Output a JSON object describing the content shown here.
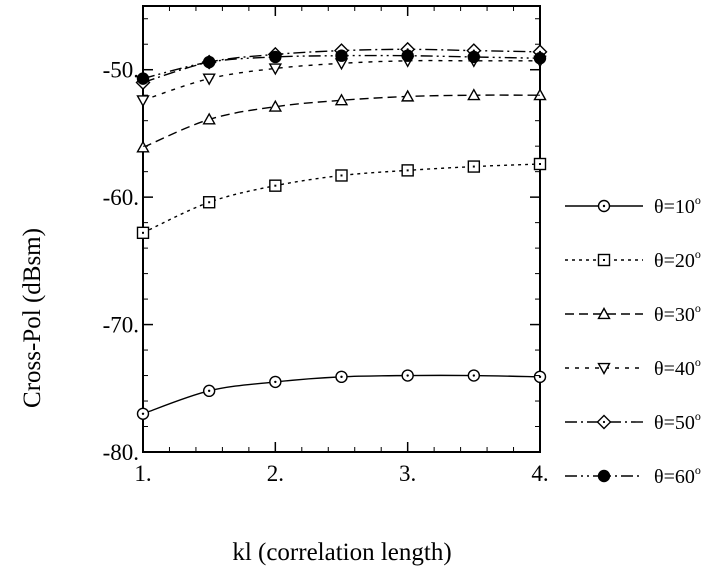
{
  "chart_data": {
    "type": "line",
    "xlabel": "kl (correlation length)",
    "ylabel": "Cross-Pol (dBsm)",
    "xlim": [
      1,
      4
    ],
    "ylim": [
      -80,
      -45
    ],
    "xticks": [
      1,
      2,
      3,
      4
    ],
    "xtick_labels": [
      "1.",
      "2.",
      "3.",
      "4."
    ],
    "yticks": [
      -50,
      -60,
      -70,
      -80
    ],
    "ytick_labels": [
      "-50.",
      "-60.",
      "-70.",
      "-80."
    ],
    "grid": false,
    "legend_position": "right",
    "x": [
      1.0,
      1.5,
      2.0,
      2.5,
      3.0,
      3.5,
      4.0
    ],
    "series": [
      {
        "name": "θ=10",
        "name_sup": "o",
        "marker": "circle-open",
        "line": "solid",
        "values": [
          -77.0,
          -75.2,
          -74.5,
          -74.1,
          -74.0,
          -74.0,
          -74.1
        ]
      },
      {
        "name": "θ=20",
        "name_sup": "o",
        "marker": "square-open",
        "line": "dotted",
        "values": [
          -62.8,
          -60.4,
          -59.1,
          -58.3,
          -57.9,
          -57.6,
          -57.4
        ]
      },
      {
        "name": "θ=30",
        "name_sup": "o",
        "marker": "triangle-up-open",
        "line": "dashed",
        "values": [
          -56.1,
          -53.9,
          -52.9,
          -52.4,
          -52.1,
          -52.0,
          -52.0
        ]
      },
      {
        "name": "θ=40",
        "name_sup": "o",
        "marker": "triangle-down-open",
        "line": "dotted-long",
        "values": [
          -52.4,
          -50.7,
          -49.9,
          -49.5,
          -49.3,
          -49.3,
          -49.3
        ]
      },
      {
        "name": "θ=50",
        "name_sup": "o",
        "marker": "diamond-open",
        "line": "dash-dot",
        "values": [
          -51.0,
          -49.4,
          -48.8,
          -48.5,
          -48.4,
          -48.5,
          -48.6
        ]
      },
      {
        "name": "θ=60",
        "name_sup": "o",
        "marker": "circle-filled",
        "line": "dash-dot-dot",
        "values": [
          -50.7,
          -49.4,
          -49.0,
          -48.9,
          -48.9,
          -49.0,
          -49.1
        ]
      }
    ]
  }
}
